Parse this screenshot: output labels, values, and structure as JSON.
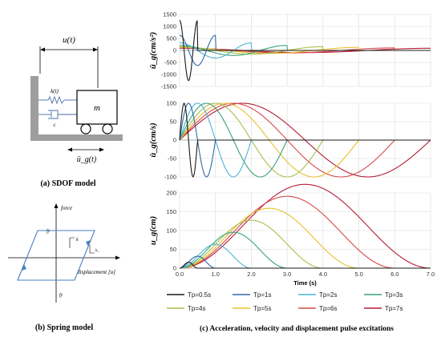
{
  "sdof": {
    "u_label": "u(t)",
    "k_label": "k(t)",
    "c_label": "c",
    "m_label": "m",
    "ug_label": "ü_g(t)",
    "caption": "(a) SDOF model"
  },
  "spring": {
    "force_label": "force",
    "fy_top": "fy",
    "fy_bottom": "fy",
    "k_label": "k",
    "k2_label": "k₂",
    "disp_label": "displacement [u]",
    "caption": "(b) Spring model"
  },
  "caption_c": "(c) Acceleration, velocity and displacement pulse excitations",
  "legend": [
    {
      "label": "Tp=0.5s",
      "color": "#1a1a1a"
    },
    {
      "label": "Tp=1s",
      "color": "#2f6aa3"
    },
    {
      "label": "Tp=2s",
      "color": "#4db3d6"
    },
    {
      "label": "Tp=3s",
      "color": "#3aa07a"
    },
    {
      "label": "Tp=4s",
      "color": "#a6c04a"
    },
    {
      "label": "Tp=5s",
      "color": "#e8c02e"
    },
    {
      "label": "Tp=6s",
      "color": "#d84848"
    },
    {
      "label": "Tp=7s",
      "color": "#b21e36"
    }
  ],
  "chart_data": [
    {
      "type": "line",
      "ylabel": "ü_g(cm/s²)",
      "ylim": [
        -1500,
        1500
      ],
      "yticks": [
        -1500,
        -1000,
        -500,
        0,
        500,
        1000,
        1500
      ],
      "xlim": [
        0,
        7
      ],
      "grid": true,
      "description_of_form": "a(t) = (2*pi*Vp/Tp) * cos(2*pi*t/Tp) for 0<=t<=Tp",
      "Vp": 100,
      "series": [
        {
          "name": "Tp=0.5s",
          "Tp": 0.5
        },
        {
          "name": "Tp=1s",
          "Tp": 1
        },
        {
          "name": "Tp=2s",
          "Tp": 2
        },
        {
          "name": "Tp=3s",
          "Tp": 3
        },
        {
          "name": "Tp=4s",
          "Tp": 4
        },
        {
          "name": "Tp=5s",
          "Tp": 5
        },
        {
          "name": "Tp=6s",
          "Tp": 6
        },
        {
          "name": "Tp=7s",
          "Tp": 7
        }
      ]
    },
    {
      "type": "line",
      "ylabel": "u̇_g(cm/s)",
      "ylim": [
        -100,
        100
      ],
      "yticks": [
        -100,
        -50,
        0,
        50,
        100
      ],
      "xlim": [
        0,
        7
      ],
      "grid": true,
      "description_of_form": "v(t) = Vp * sin(2*pi*t/Tp) for 0<=t<=Tp",
      "Vp": 100
    },
    {
      "type": "line",
      "ylabel": "u_g(cm)",
      "ylim": [
        0,
        200
      ],
      "yticks": [
        0,
        50,
        100,
        150,
        200
      ],
      "xlim": [
        0,
        7
      ],
      "xticks": [
        "0.0",
        "1.0",
        "2.0",
        "3.0",
        "4.0",
        "5.0",
        "6.0",
        "7.0"
      ],
      "xlabel": "Time (s)",
      "grid": true,
      "description_of_form": "d(t) = (Vp*Tp/(2*pi)) * (1 - cos(2*pi*t/Tp)) for 0<=t<=Tp",
      "Vp": 100
    }
  ]
}
